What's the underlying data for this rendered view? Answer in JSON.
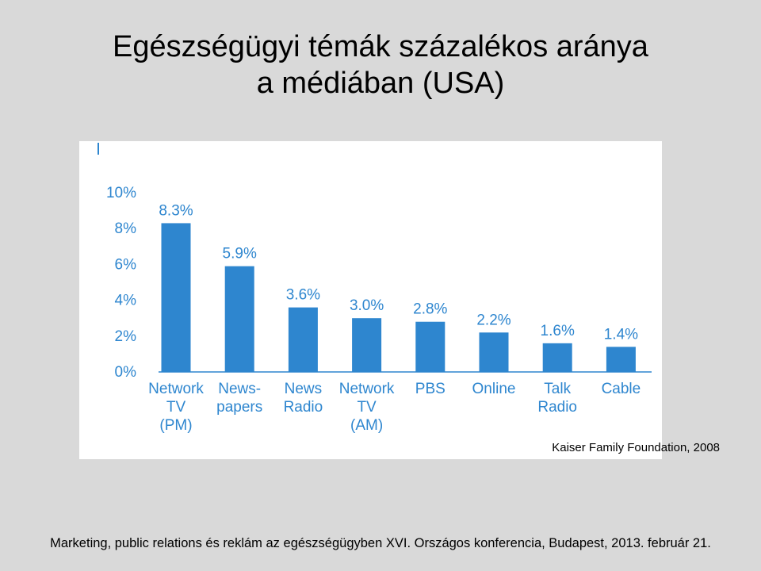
{
  "slide": {
    "title_line1": "Egészségügyi témák százalékos aránya",
    "title_line2": "a médiában (USA)",
    "source": "Kaiser Family Foundation, 2008",
    "footer": "Marketing, public relations és reklám az egészségügyben XVI. Országos konferencia, Budapest, 2013. február 21."
  },
  "colors": {
    "bar": "#2e86cf",
    "axis": "#2e86cf",
    "text": "#2e86cf",
    "background": "#d9d9d9"
  },
  "chart_data": {
    "type": "bar",
    "title": "",
    "xlabel": "",
    "ylabel": "",
    "ylim": [
      0,
      10
    ],
    "yticks": [
      0,
      2,
      4,
      6,
      8,
      10
    ],
    "ytick_labels": [
      "0%",
      "2%",
      "4%",
      "6%",
      "8%",
      "10%"
    ],
    "categories": [
      [
        "Network",
        "TV",
        "(PM)"
      ],
      [
        "News-",
        "papers"
      ],
      [
        "News",
        "Radio"
      ],
      [
        "Network",
        "TV",
        "(AM)"
      ],
      [
        "PBS"
      ],
      [
        "Online"
      ],
      [
        "Talk",
        "Radio"
      ],
      [
        "Cable"
      ]
    ],
    "values": [
      8.3,
      5.9,
      3.6,
      3.0,
      2.8,
      2.2,
      1.6,
      1.4
    ],
    "data_labels": [
      "8.3%",
      "5.9%",
      "3.6%",
      "3.0%",
      "2.8%",
      "2.2%",
      "1.6%",
      "1.4%"
    ],
    "grid": false
  }
}
